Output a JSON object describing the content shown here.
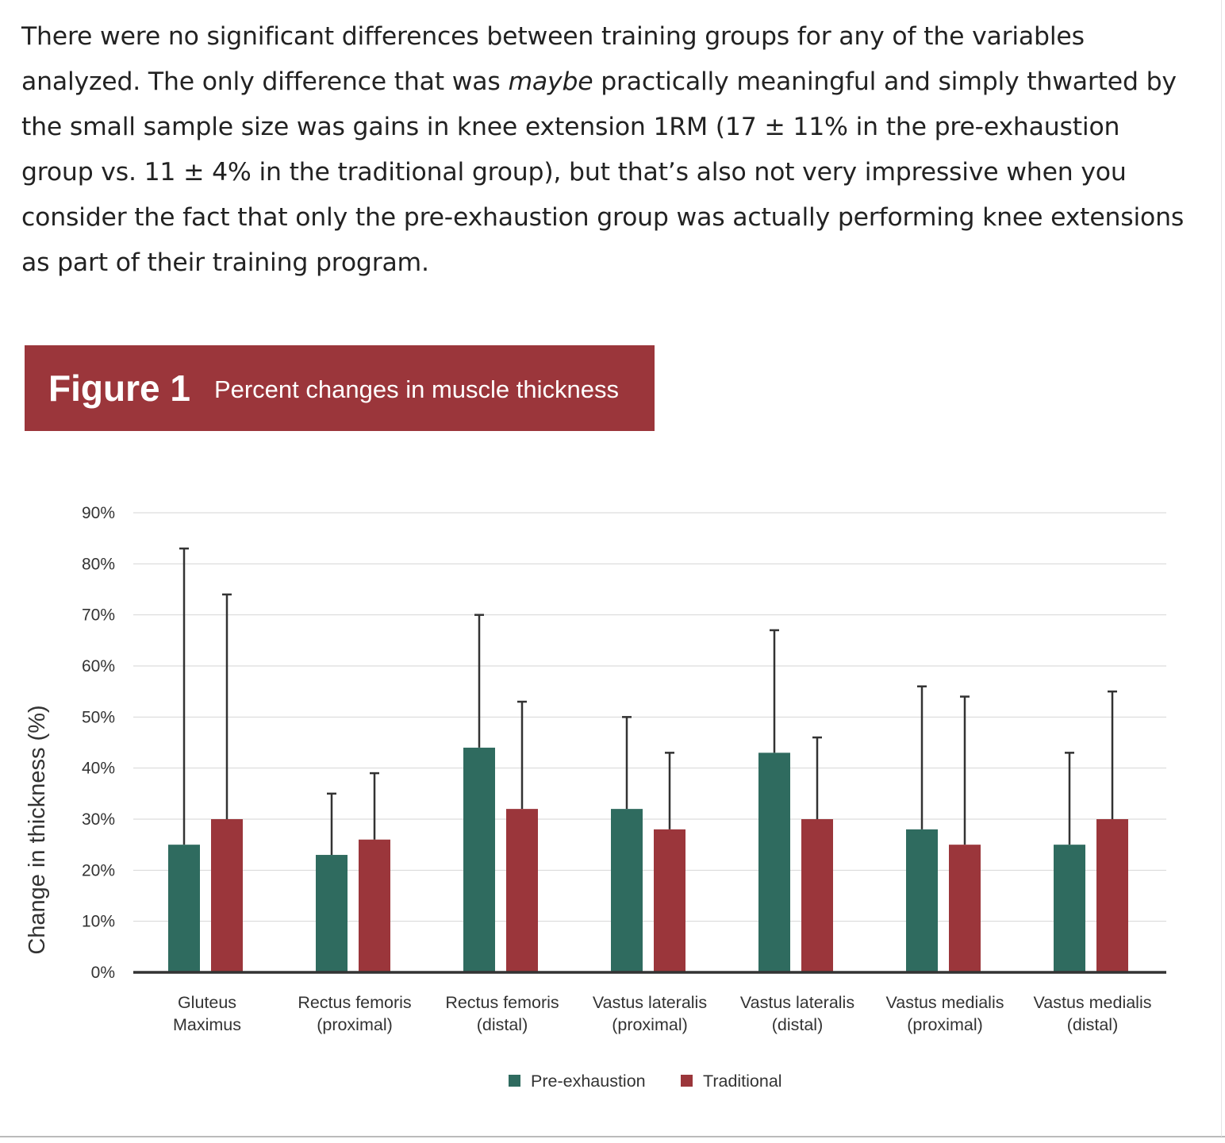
{
  "paragraph": {
    "before_italic": "There were no significant differences between training groups for any of the variables analyzed. The only difference that was ",
    "italic": "maybe",
    "after_italic": " practically meaningful and simply thwarted by the small sample size was gains in knee extension 1RM (17 ± 11% in the pre-exhaustion group vs. 11 ± 4% in the traditional group), but that’s also not very impressive when you consider the fact that only the pre-exhaustion group was actually performing knee extensions as part of their training program."
  },
  "figure": {
    "number": "Figure 1",
    "title": "Percent changes in muscle thickness"
  },
  "colors": {
    "header": "#9b363b",
    "pre": "#2f6b5f",
    "trad": "#9b363b"
  },
  "chart_data": {
    "type": "bar",
    "ylabel": "Change in thickness (%)",
    "xlabel": "",
    "ylim": [
      0,
      90
    ],
    "yticks": [
      "0%",
      "10%",
      "20%",
      "30%",
      "40%",
      "50%",
      "60%",
      "70%",
      "80%",
      "90%"
    ],
    "grid": true,
    "legend_placement": "bottom",
    "categories": [
      [
        "Gluteus",
        "Maximus"
      ],
      [
        "Rectus femoris",
        "(proximal)"
      ],
      [
        "Rectus femoris",
        "(distal)"
      ],
      [
        "Vastus lateralis",
        "(proximal)"
      ],
      [
        "Vastus lateralis",
        "(distal)"
      ],
      [
        "Vastus medialis",
        "(proximal)"
      ],
      [
        "Vastus medialis",
        "(distal)"
      ]
    ],
    "series": [
      {
        "name": "Pre-exhaustion",
        "values": [
          25,
          23,
          44,
          32,
          43,
          28,
          25
        ],
        "error_upper": [
          83,
          35,
          70,
          50,
          67,
          56,
          43
        ]
      },
      {
        "name": "Traditional",
        "values": [
          30,
          26,
          32,
          28,
          30,
          25,
          30
        ],
        "error_upper": [
          74,
          39,
          53,
          43,
          46,
          54,
          55
        ]
      }
    ]
  }
}
